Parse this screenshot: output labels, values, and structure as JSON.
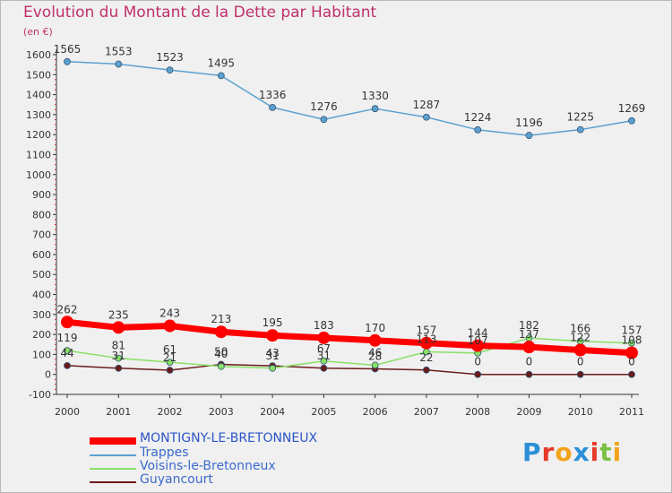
{
  "title": "Evolution du Montant de la Dette par Habitant",
  "subtitle": "(en €)",
  "logo": {
    "text": "Proxiti",
    "colors": [
      "#2a8fd6",
      "#e63a2a",
      "#f2a31b",
      "#2a8fd6",
      "#e63a2a",
      "#7ac143",
      "#f2a31b"
    ]
  },
  "chart_data": {
    "type": "line",
    "x": [
      "2000",
      "2001",
      "2002",
      "2003",
      "2004",
      "2005",
      "2006",
      "2007",
      "2008",
      "2009",
      "2010",
      "2011"
    ],
    "ylim": [
      -100,
      1600
    ],
    "yticks": [
      "-100",
      "0",
      "100",
      "200",
      "300",
      "400",
      "500",
      "600",
      "700",
      "800",
      "900",
      "1000",
      "1100",
      "1200",
      "1300",
      "1400",
      "1500",
      "1600"
    ],
    "grid": false,
    "legend_position": "bottom-left",
    "series": [
      {
        "name": "MONTIGNY-LE-BRETONNEUX",
        "color": "#ff0000",
        "values": [
          262,
          235,
          243,
          213,
          195,
          183,
          170,
          157,
          144,
          137,
          122,
          108
        ],
        "labels": [
          "262",
          "235",
          "243",
          "213",
          "195",
          "183",
          "170",
          "157",
          "144",
          "137",
          "122",
          "108"
        ]
      },
      {
        "name": "Trappes",
        "color": "#5ba1d0",
        "values": [
          1565,
          1553,
          1523,
          1495,
          1336,
          1276,
          1330,
          1287,
          1224,
          1196,
          1225,
          1269
        ],
        "labels": [
          "1565",
          "1553",
          "1523",
          "1495",
          "1336",
          "1276",
          "1330",
          "1287",
          "1224",
          "1196",
          "1225",
          "1269"
        ]
      },
      {
        "name": "Voisins-le-Bretonneux",
        "color": "#88e065",
        "values": [
          119,
          81,
          61,
          40,
          31,
          67,
          46,
          113,
          107,
          182,
          166,
          157
        ],
        "labels": [
          "119",
          "81",
          "61",
          "40",
          "31",
          "67",
          "46",
          "113",
          "107",
          "182",
          "166",
          "157"
        ]
      },
      {
        "name": "Guyancourt",
        "color": "#6b1a1a",
        "values": [
          44,
          31,
          21,
          50,
          43,
          31,
          28,
          22,
          0,
          0,
          0,
          0
        ],
        "labels": [
          "44",
          "31",
          "21",
          "50",
          "43",
          "31",
          "28",
          "22",
          "0",
          "0",
          "0",
          "0"
        ]
      }
    ]
  }
}
